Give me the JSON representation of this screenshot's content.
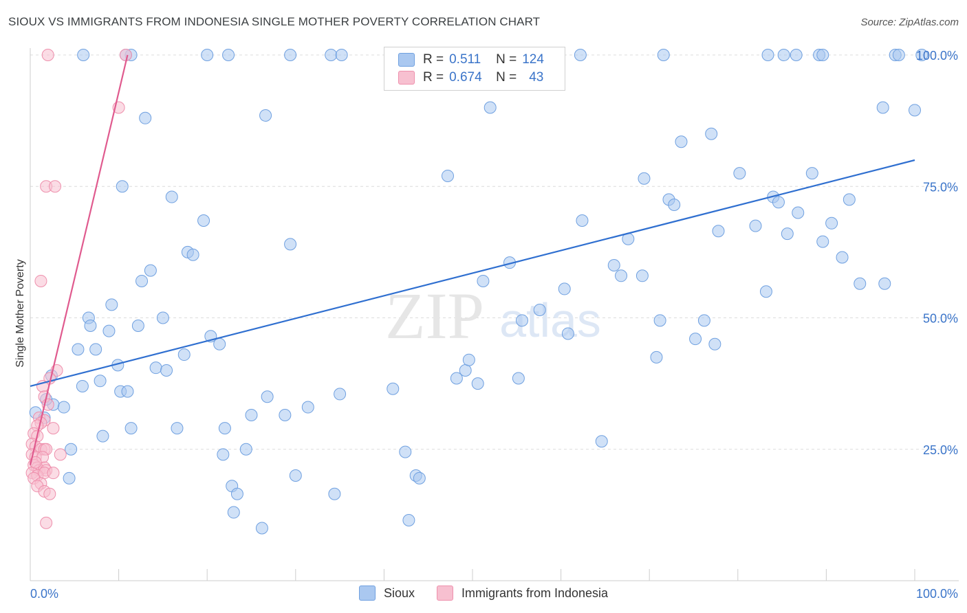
{
  "title": "SIOUX VS IMMIGRANTS FROM INDONESIA SINGLE MOTHER POVERTY CORRELATION CHART",
  "source": "Source: ZipAtlas.com",
  "watermark": {
    "zip": "ZIP",
    "atlas": "atlas"
  },
  "legend": {
    "rows": [
      {
        "r_label": "R =",
        "r_value": "0.511",
        "n_label": "N =",
        "n_value": "124",
        "color": "#aac8f0",
        "stroke": "#6fa0e0"
      },
      {
        "r_label": "R =",
        "r_value": "0.674",
        "n_label": "N =",
        "n_value": "43",
        "color": "#f7c0d0",
        "stroke": "#ee8fac"
      }
    ]
  },
  "chart_data": {
    "type": "scatter",
    "title": "SIOUX VS IMMIGRANTS FROM INDONESIA SINGLE MOTHER POVERTY CORRELATION CHART",
    "xlabel": "",
    "ylabel": "Single Mother Poverty",
    "xlim": [
      0,
      100
    ],
    "ylim": [
      0,
      100
    ],
    "x_tick_labels": [
      "0.0%",
      "100.0%"
    ],
    "y_tick_labels": [
      "25.0%",
      "50.0%",
      "75.0%",
      "100.0%"
    ],
    "y_ticks": [
      25,
      50,
      75,
      100
    ],
    "grid": true,
    "legend_position": "bottom",
    "series": [
      {
        "name": "Sioux",
        "color": "#aac8f0",
        "stroke": "#6fa0e0",
        "trend": {
          "x": [
            0,
            100
          ],
          "y": [
            37,
            80
          ],
          "color": "#2f6fd0"
        },
        "points": [
          [
            0.6,
            32
          ],
          [
            2.4,
            39
          ],
          [
            2.6,
            33.5
          ],
          [
            1.8,
            34.5
          ],
          [
            1.6,
            31
          ],
          [
            3.8,
            33
          ],
          [
            4.6,
            25
          ],
          [
            4.4,
            19.5
          ],
          [
            5.4,
            44
          ],
          [
            5.9,
            37
          ],
          [
            6.6,
            50
          ],
          [
            6.8,
            48.5
          ],
          [
            7.4,
            44
          ],
          [
            7.9,
            38
          ],
          [
            8.2,
            27.5
          ],
          [
            8.9,
            47.5
          ],
          [
            9.2,
            52.5
          ],
          [
            9.9,
            41
          ],
          [
            10.2,
            36
          ],
          [
            10.4,
            75
          ],
          [
            11.0,
            36
          ],
          [
            11.4,
            29
          ],
          [
            12.2,
            48.5
          ],
          [
            12.6,
            57
          ],
          [
            13.0,
            88
          ],
          [
            13.6,
            59
          ],
          [
            14.2,
            40.5
          ],
          [
            15.0,
            50
          ],
          [
            15.4,
            40
          ],
          [
            16.0,
            73
          ],
          [
            16.6,
            29
          ],
          [
            17.4,
            43
          ],
          [
            17.8,
            62.5
          ],
          [
            18.4,
            62
          ],
          [
            19.6,
            68.5
          ],
          [
            20.4,
            46.5
          ],
          [
            21.4,
            45
          ],
          [
            21.8,
            24
          ],
          [
            22.0,
            29
          ],
          [
            22.8,
            18
          ],
          [
            23.0,
            13
          ],
          [
            23.4,
            16.5
          ],
          [
            24.4,
            25
          ],
          [
            25.0,
            31.5
          ],
          [
            26.2,
            10
          ],
          [
            26.6,
            88.5
          ],
          [
            26.8,
            35
          ],
          [
            28.8,
            31.5
          ],
          [
            29.4,
            64
          ],
          [
            30.0,
            20
          ],
          [
            31.4,
            33
          ],
          [
            34.4,
            16.5
          ],
          [
            35.0,
            35.5
          ],
          [
            41.0,
            36.5
          ],
          [
            42.4,
            24.5
          ],
          [
            42.8,
            11.5
          ],
          [
            43.6,
            20
          ],
          [
            44.0,
            19.5
          ],
          [
            47.2,
            77
          ],
          [
            48.2,
            38.5
          ],
          [
            49.2,
            40
          ],
          [
            49.6,
            42
          ],
          [
            50.6,
            37.5
          ],
          [
            51.2,
            57
          ],
          [
            52.0,
            90
          ],
          [
            54.2,
            60.5
          ],
          [
            55.2,
            38.5
          ],
          [
            55.6,
            49.5
          ],
          [
            57.6,
            51.5
          ],
          [
            60.4,
            55.5
          ],
          [
            60.8,
            47
          ],
          [
            62.4,
            68.5
          ],
          [
            64.6,
            26.5
          ],
          [
            66.0,
            60
          ],
          [
            66.8,
            58
          ],
          [
            67.6,
            65
          ],
          [
            69.2,
            58
          ],
          [
            69.4,
            76.5
          ],
          [
            70.8,
            42.5
          ],
          [
            71.2,
            49.5
          ],
          [
            72.2,
            72.5
          ],
          [
            72.8,
            71.5
          ],
          [
            73.6,
            83.5
          ],
          [
            75.2,
            46
          ],
          [
            76.2,
            49.5
          ],
          [
            77.0,
            85
          ],
          [
            77.4,
            45
          ],
          [
            77.8,
            66.5
          ],
          [
            80.2,
            77.5
          ],
          [
            82.0,
            67.5
          ],
          [
            83.2,
            55
          ],
          [
            84.0,
            73
          ],
          [
            84.6,
            72
          ],
          [
            85.6,
            66
          ],
          [
            86.8,
            70
          ],
          [
            88.4,
            77.5
          ],
          [
            89.6,
            64.5
          ],
          [
            90.6,
            68
          ],
          [
            91.8,
            61.5
          ],
          [
            92.6,
            72.5
          ],
          [
            93.8,
            56.5
          ],
          [
            96.6,
            56.5
          ],
          [
            96.4,
            90
          ],
          [
            100,
            89.5
          ],
          [
            11.4,
            100
          ],
          [
            22.4,
            100
          ],
          [
            29.4,
            100
          ],
          [
            34.0,
            100
          ],
          [
            35.2,
            100
          ],
          [
            44.6,
            100
          ],
          [
            62.2,
            100
          ],
          [
            71.6,
            100
          ],
          [
            83.4,
            100
          ],
          [
            85.2,
            100
          ],
          [
            86.6,
            100
          ],
          [
            89.2,
            100
          ],
          [
            89.6,
            100
          ],
          [
            97.8,
            100
          ],
          [
            98.2,
            100
          ],
          [
            100.8,
            100
          ],
          [
            10.8,
            100
          ],
          [
            53.0,
            100
          ],
          [
            6.0,
            100
          ],
          [
            20.0,
            100
          ]
        ]
      },
      {
        "name": "Immigrants from Indonesia",
        "color": "#f7c0d0",
        "stroke": "#ee8fac",
        "trend": {
          "x": [
            0,
            11
          ],
          "y": [
            22,
            100
          ],
          "color": "#e05a8e"
        },
        "points": [
          [
            2.0,
            100
          ],
          [
            10.8,
            100
          ],
          [
            10.0,
            90
          ],
          [
            1.8,
            75
          ],
          [
            2.8,
            75
          ],
          [
            1.2,
            57
          ],
          [
            3.0,
            40
          ],
          [
            2.2,
            38.5
          ],
          [
            1.4,
            37
          ],
          [
            1.6,
            35
          ],
          [
            2.0,
            33.5
          ],
          [
            1.0,
            31
          ],
          [
            1.6,
            30.5
          ],
          [
            1.2,
            30
          ],
          [
            0.8,
            29.5
          ],
          [
            2.6,
            29
          ],
          [
            0.4,
            28
          ],
          [
            0.8,
            27.5
          ],
          [
            0.2,
            26
          ],
          [
            0.6,
            25.5
          ],
          [
            1.2,
            25
          ],
          [
            1.6,
            25
          ],
          [
            1.8,
            25
          ],
          [
            0.2,
            24
          ],
          [
            0.6,
            23.5
          ],
          [
            1.4,
            23.5
          ],
          [
            3.4,
            24
          ],
          [
            0.4,
            22
          ],
          [
            0.8,
            21.5
          ],
          [
            1.0,
            21
          ],
          [
            1.6,
            21.5
          ],
          [
            1.8,
            21
          ],
          [
            0.2,
            20.5
          ],
          [
            0.8,
            20
          ],
          [
            1.6,
            20.5
          ],
          [
            2.6,
            20.5
          ],
          [
            0.4,
            19.5
          ],
          [
            1.2,
            18.5
          ],
          [
            0.8,
            18
          ],
          [
            1.6,
            17
          ],
          [
            2.2,
            16.5
          ],
          [
            1.8,
            11
          ],
          [
            0.6,
            22.5
          ]
        ]
      }
    ]
  },
  "bottom_legend": [
    {
      "label": "Sioux",
      "color": "#aac8f0",
      "stroke": "#6fa0e0"
    },
    {
      "label": "Immigrants from Indonesia",
      "color": "#f7c0d0",
      "stroke": "#ee8fac"
    }
  ]
}
